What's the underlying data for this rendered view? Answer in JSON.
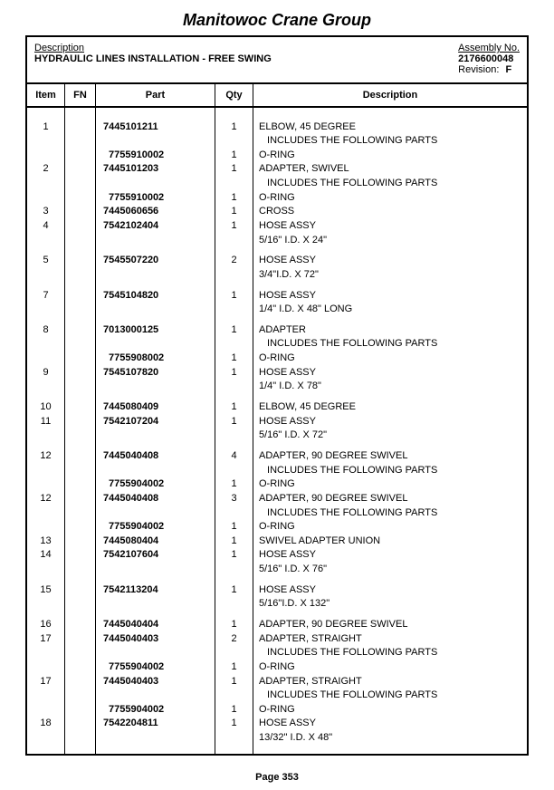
{
  "company": "Manitowoc Crane Group",
  "header": {
    "desc_label": "Description",
    "desc_value": "HYDRAULIC LINES INSTALLATION - FREE SWING",
    "asm_label": "Assembly No.",
    "asm_value": "2176600048",
    "rev_label": "Revision:",
    "rev_value": "F"
  },
  "columns": {
    "item": "Item",
    "fn": "FN",
    "part": "Part",
    "qty": "Qty",
    "desc": "Description"
  },
  "rows": [
    {
      "item": "1",
      "fn": "",
      "part": "7445101211",
      "sub": false,
      "qty": "1",
      "desc": "ELBOW, 45 DEGREE",
      "gap_before": true
    },
    {
      "item": "",
      "fn": "",
      "part": "",
      "sub": false,
      "qty": "",
      "desc": " INCLUDES THE FOLLOWING PARTS",
      "descSub": true,
      "gap_before": false
    },
    {
      "item": "",
      "fn": "",
      "part": "7755910002",
      "sub": true,
      "qty": "1",
      "desc": "O-RING",
      "gap_before": false
    },
    {
      "item": "2",
      "fn": "",
      "part": "7445101203",
      "sub": false,
      "qty": "1",
      "desc": "ADAPTER, SWIVEL",
      "gap_before": false
    },
    {
      "item": "",
      "fn": "",
      "part": "",
      "sub": false,
      "qty": "",
      "desc": " INCLUDES THE FOLLOWING PARTS",
      "descSub": true,
      "gap_before": false
    },
    {
      "item": "",
      "fn": "",
      "part": "7755910002",
      "sub": true,
      "qty": "1",
      "desc": "O-RING",
      "gap_before": false
    },
    {
      "item": "3",
      "fn": "",
      "part": "7445060656",
      "sub": false,
      "qty": "1",
      "desc": "CROSS",
      "gap_before": false
    },
    {
      "item": "4",
      "fn": "",
      "part": "7542102404",
      "sub": false,
      "qty": "1",
      "desc": "HOSE ASSY",
      "gap_before": false
    },
    {
      "item": "",
      "fn": "",
      "part": "",
      "sub": false,
      "qty": "",
      "desc": "5/16\" I.D. X 24\"",
      "gap_before": false
    },
    {
      "item": "5",
      "fn": "",
      "part": "7545507220",
      "sub": false,
      "qty": "2",
      "desc": "HOSE ASSY",
      "gap_before": true
    },
    {
      "item": "",
      "fn": "",
      "part": "",
      "sub": false,
      "qty": "",
      "desc": "3/4\"I.D. X 72\"",
      "gap_before": false
    },
    {
      "item": "7",
      "fn": "",
      "part": "7545104820",
      "sub": false,
      "qty": "1",
      "desc": "HOSE ASSY",
      "gap_before": true
    },
    {
      "item": "",
      "fn": "",
      "part": "",
      "sub": false,
      "qty": "",
      "desc": "1/4\" I.D. X 48\" LONG",
      "gap_before": false
    },
    {
      "item": "8",
      "fn": "",
      "part": "7013000125",
      "sub": false,
      "qty": "1",
      "desc": "ADAPTER",
      "gap_before": true
    },
    {
      "item": "",
      "fn": "",
      "part": "",
      "sub": false,
      "qty": "",
      "desc": " INCLUDES THE FOLLOWING PARTS",
      "descSub": true,
      "gap_before": false
    },
    {
      "item": "",
      "fn": "",
      "part": "7755908002",
      "sub": true,
      "qty": "1",
      "desc": "O-RING",
      "gap_before": false
    },
    {
      "item": "9",
      "fn": "",
      "part": "7545107820",
      "sub": false,
      "qty": "1",
      "desc": "HOSE ASSY",
      "gap_before": false
    },
    {
      "item": "",
      "fn": "",
      "part": "",
      "sub": false,
      "qty": "",
      "desc": "1/4\" I.D. X 78\"",
      "gap_before": false
    },
    {
      "item": "10",
      "fn": "",
      "part": "7445080409",
      "sub": false,
      "qty": "1",
      "desc": "ELBOW, 45 DEGREE",
      "gap_before": true
    },
    {
      "item": "11",
      "fn": "",
      "part": "7542107204",
      "sub": false,
      "qty": "1",
      "desc": "HOSE ASSY",
      "gap_before": false
    },
    {
      "item": "",
      "fn": "",
      "part": "",
      "sub": false,
      "qty": "",
      "desc": "5/16\" I.D. X 72\"",
      "gap_before": false
    },
    {
      "item": "12",
      "fn": "",
      "part": "7445040408",
      "sub": false,
      "qty": "4",
      "desc": "ADAPTER, 90 DEGREE SWIVEL",
      "gap_before": true
    },
    {
      "item": "",
      "fn": "",
      "part": "",
      "sub": false,
      "qty": "",
      "desc": " INCLUDES THE FOLLOWING PARTS",
      "descSub": true,
      "gap_before": false
    },
    {
      "item": "",
      "fn": "",
      "part": "7755904002",
      "sub": true,
      "qty": "1",
      "desc": "O-RING",
      "gap_before": false
    },
    {
      "item": "12",
      "fn": "",
      "part": "7445040408",
      "sub": false,
      "qty": "3",
      "desc": "ADAPTER, 90 DEGREE SWIVEL",
      "gap_before": false
    },
    {
      "item": "",
      "fn": "",
      "part": "",
      "sub": false,
      "qty": "",
      "desc": " INCLUDES THE FOLLOWING PARTS",
      "descSub": true,
      "gap_before": false
    },
    {
      "item": "",
      "fn": "",
      "part": "7755904002",
      "sub": true,
      "qty": "1",
      "desc": "O-RING",
      "gap_before": false
    },
    {
      "item": "13",
      "fn": "",
      "part": "7445080404",
      "sub": false,
      "qty": "1",
      "desc": "SWIVEL ADAPTER UNION",
      "gap_before": false
    },
    {
      "item": "14",
      "fn": "",
      "part": "7542107604",
      "sub": false,
      "qty": "1",
      "desc": "HOSE ASSY",
      "gap_before": false
    },
    {
      "item": "",
      "fn": "",
      "part": "",
      "sub": false,
      "qty": "",
      "desc": "5/16\" I.D. X 76\"",
      "gap_before": false
    },
    {
      "item": "15",
      "fn": "",
      "part": "7542113204",
      "sub": false,
      "qty": "1",
      "desc": "HOSE ASSY",
      "gap_before": true
    },
    {
      "item": "",
      "fn": "",
      "part": "",
      "sub": false,
      "qty": "",
      "desc": "5/16\"I.D. X 132\"",
      "gap_before": false
    },
    {
      "item": "16",
      "fn": "",
      "part": "7445040404",
      "sub": false,
      "qty": "1",
      "desc": "ADAPTER, 90 DEGREE SWIVEL",
      "gap_before": true
    },
    {
      "item": "17",
      "fn": "",
      "part": "7445040403",
      "sub": false,
      "qty": "2",
      "desc": "ADAPTER, STRAIGHT",
      "gap_before": false
    },
    {
      "item": "",
      "fn": "",
      "part": "",
      "sub": false,
      "qty": "",
      "desc": " INCLUDES THE FOLLOWING PARTS",
      "descSub": true,
      "gap_before": false
    },
    {
      "item": "",
      "fn": "",
      "part": "7755904002",
      "sub": true,
      "qty": "1",
      "desc": "O-RING",
      "gap_before": false
    },
    {
      "item": "17",
      "fn": "",
      "part": "7445040403",
      "sub": false,
      "qty": "1",
      "desc": "ADAPTER, STRAIGHT",
      "gap_before": false
    },
    {
      "item": "",
      "fn": "",
      "part": "",
      "sub": false,
      "qty": "",
      "desc": " INCLUDES THE FOLLOWING PARTS",
      "descSub": true,
      "gap_before": false
    },
    {
      "item": "",
      "fn": "",
      "part": "7755904002",
      "sub": true,
      "qty": "1",
      "desc": "O-RING",
      "gap_before": false
    },
    {
      "item": "18",
      "fn": "",
      "part": "7542204811",
      "sub": false,
      "qty": "1",
      "desc": "HOSE ASSY",
      "gap_before": false
    },
    {
      "item": "",
      "fn": "",
      "part": "",
      "sub": false,
      "qty": "",
      "desc": "13/32\" I.D. X 48\"",
      "gap_before": false
    }
  ],
  "footer": "Page 353"
}
